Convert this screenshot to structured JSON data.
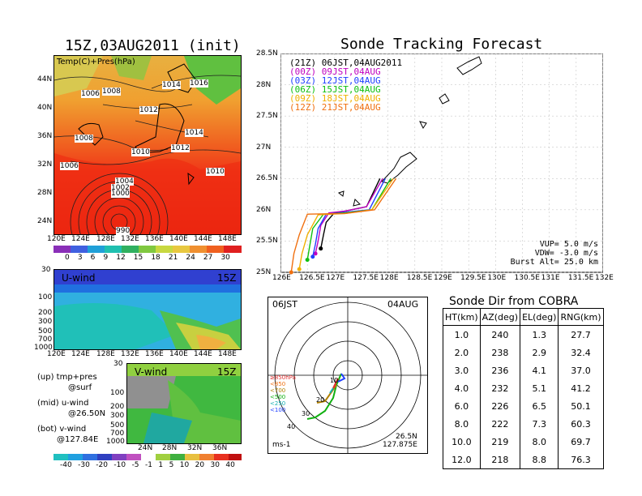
{
  "left_map": {
    "title": "15Z,03AUG2011 (init)",
    "field_label": "Temp(C)+Pres(hPa)",
    "lat_ticks": [
      "44N",
      "40N",
      "36N",
      "32N",
      "28N",
      "24N"
    ],
    "lon_ticks": [
      "120E",
      "124E",
      "128E",
      "132E",
      "136E",
      "140E",
      "144E",
      "148E"
    ],
    "isobar_labels": [
      "1006",
      "1008",
      "1014",
      "1016",
      "1012",
      "1008",
      "1014",
      "1010",
      "1012",
      "1006",
      "1010",
      "1004",
      "1002",
      "1000",
      "990"
    ],
    "colorbar_ticks": [
      "0",
      "3",
      "6",
      "9",
      "12",
      "15",
      "18",
      "21",
      "24",
      "27",
      "30"
    ]
  },
  "u_panel": {
    "label": "U-wind",
    "time": "15Z",
    "pressure_ticks": [
      "30",
      "100",
      "200",
      "300",
      "500",
      "700",
      "1000"
    ],
    "lon_ticks": [
      "120E",
      "124E",
      "128E",
      "132E",
      "136E",
      "140E",
      "144E",
      "148E"
    ]
  },
  "v_panel": {
    "label": "V-wind",
    "time": "15Z",
    "pressure_ticks": [
      "30",
      "100",
      "200",
      "300",
      "500",
      "700",
      "1000"
    ],
    "lat_ticks": [
      "24N",
      "28N",
      "32N",
      "36N"
    ]
  },
  "legend_notes": [
    {
      "l1": "(up) tmp+pres",
      "l2": "@surf"
    },
    {
      "l1": "(mid) u-wind",
      "l2": "@26.50N"
    },
    {
      "l1": "(bot) v-wind",
      "l2": "@127.84E"
    }
  ],
  "wind_colorbar_ticks": [
    "-40",
    "-30",
    "-20",
    "-10",
    "-5",
    "-1",
    "1",
    "5",
    "10",
    "20",
    "30",
    "40"
  ],
  "track": {
    "title": "Sonde Tracking Forecast",
    "lat_ticks": [
      "28.5N",
      "28N",
      "27.5N",
      "27N",
      "26.5N",
      "26N",
      "25.5N",
      "25N"
    ],
    "lon_ticks": [
      "126E",
      "126.5E",
      "127E",
      "127.5E",
      "128E",
      "128.5E",
      "129E",
      "129.5E",
      "130E",
      "130.5E",
      "131E",
      "131.5E",
      "132E"
    ],
    "legend": [
      {
        "text": "(21Z) 06JST,04AUG2011",
        "color": "#000000"
      },
      {
        "text": "(00Z) 09JST,04AUG",
        "color": "#c000c0"
      },
      {
        "text": "(03Z) 12JST,04AUG",
        "color": "#2040ff"
      },
      {
        "text": "(06Z) 15JST,04AUG",
        "color": "#10c010"
      },
      {
        "text": "(09Z) 18JST,04AUG",
        "color": "#f0b000"
      },
      {
        "text": "(12Z) 21JST,04AUG",
        "color": "#f07010"
      }
    ],
    "params": [
      "VUP=  5.0 m/s",
      "VDW= -3.0 m/s",
      "Burst Alt= 25.0 km"
    ]
  },
  "polar": {
    "time_left": "06JST",
    "date_right": "04AUG",
    "units": "ms-1",
    "loc1": "26.5N",
    "loc2": "127.875E",
    "levels": [
      {
        "text": "≥850hPa",
        "color": "#e03030"
      },
      {
        "text": "<850",
        "color": "#f07010"
      },
      {
        "text": "<700",
        "color": "#b08000"
      },
      {
        "text": "<500",
        "color": "#10b010"
      },
      {
        "text": "<250",
        "color": "#10b0b0"
      },
      {
        "text": "<100",
        "color": "#2040ff"
      }
    ],
    "ring_labels": [
      "10",
      "20",
      "30",
      "40"
    ]
  },
  "sonde_table": {
    "title": "Sonde Dir from COBRA",
    "headers": [
      "HT(km)",
      "AZ(deg)",
      "EL(deg)",
      "RNG(km)"
    ],
    "rows": [
      [
        "1.0",
        "240",
        "1.3",
        "27.7"
      ],
      [
        "2.0",
        "238",
        "2.9",
        "32.4"
      ],
      [
        "3.0",
        "236",
        "4.1",
        "37.0"
      ],
      [
        "4.0",
        "232",
        "5.1",
        "41.2"
      ],
      [
        "6.0",
        "226",
        "6.5",
        "50.1"
      ],
      [
        "8.0",
        "222",
        "7.3",
        "60.3"
      ],
      [
        "10.0",
        "219",
        "8.0",
        "69.7"
      ],
      [
        "12.0",
        "218",
        "8.8",
        "76.3"
      ]
    ]
  },
  "chart_data": [
    {
      "type": "line",
      "title": "Sonde Tracking Forecast",
      "xlabel": "",
      "ylabel": "",
      "xlim": [
        126.0,
        132.0
      ],
      "ylim": [
        25.0,
        28.5
      ],
      "series": [
        {
          "name": "(21Z) 06JST,04AUG2011",
          "x": [
            127.85,
            127.6,
            127.2,
            127.0,
            126.85,
            126.8,
            126.75
          ],
          "y": [
            26.5,
            26.05,
            25.98,
            25.95,
            25.8,
            25.6,
            25.38
          ]
        },
        {
          "name": "(00Z) 09JST,04AUG",
          "x": [
            127.9,
            127.6,
            127.2,
            126.9,
            126.75,
            126.7,
            126.65
          ],
          "y": [
            26.5,
            26.05,
            25.98,
            25.95,
            25.75,
            25.5,
            25.3
          ]
        },
        {
          "name": "(03Z) 12JST,04AUG",
          "x": [
            127.95,
            127.65,
            127.2,
            126.85,
            126.7,
            126.65,
            126.6
          ],
          "y": [
            26.5,
            26.0,
            25.96,
            25.93,
            25.7,
            25.45,
            25.25
          ]
        },
        {
          "name": "(06Z) 15JST,04AUG",
          "x": [
            128.05,
            127.7,
            127.2,
            126.8,
            126.6,
            126.55,
            126.5
          ],
          "y": [
            26.5,
            26.0,
            25.95,
            25.93,
            25.7,
            25.45,
            25.2
          ]
        },
        {
          "name": "(09Z) 18JST,04AUG",
          "x": [
            128.1,
            127.7,
            127.2,
            126.7,
            126.5,
            126.4,
            126.35
          ],
          "y": [
            26.5,
            26.0,
            25.94,
            25.92,
            25.6,
            25.3,
            25.05
          ]
        },
        {
          "name": "(12Z) 21JST,04AUG",
          "x": [
            128.15,
            127.75,
            127.2,
            126.5,
            126.35,
            126.25,
            126.2
          ],
          "y": [
            26.5,
            26.0,
            25.94,
            25.93,
            25.6,
            25.3,
            25.0
          ]
        }
      ]
    },
    {
      "type": "table",
      "title": "Sonde Dir from COBRA",
      "columns": [
        "HT(km)",
        "AZ(deg)",
        "EL(deg)",
        "RNG(km)"
      ],
      "rows": [
        [
          1.0,
          240,
          1.3,
          27.7
        ],
        [
          2.0,
          238,
          2.9,
          32.4
        ],
        [
          3.0,
          236,
          4.1,
          37.0
        ],
        [
          4.0,
          232,
          5.1,
          41.2
        ],
        [
          6.0,
          226,
          6.5,
          50.1
        ],
        [
          8.0,
          222,
          7.3,
          60.3
        ],
        [
          10.0,
          219,
          8.0,
          69.7
        ],
        [
          12.0,
          218,
          8.8,
          76.3
        ]
      ]
    }
  ]
}
